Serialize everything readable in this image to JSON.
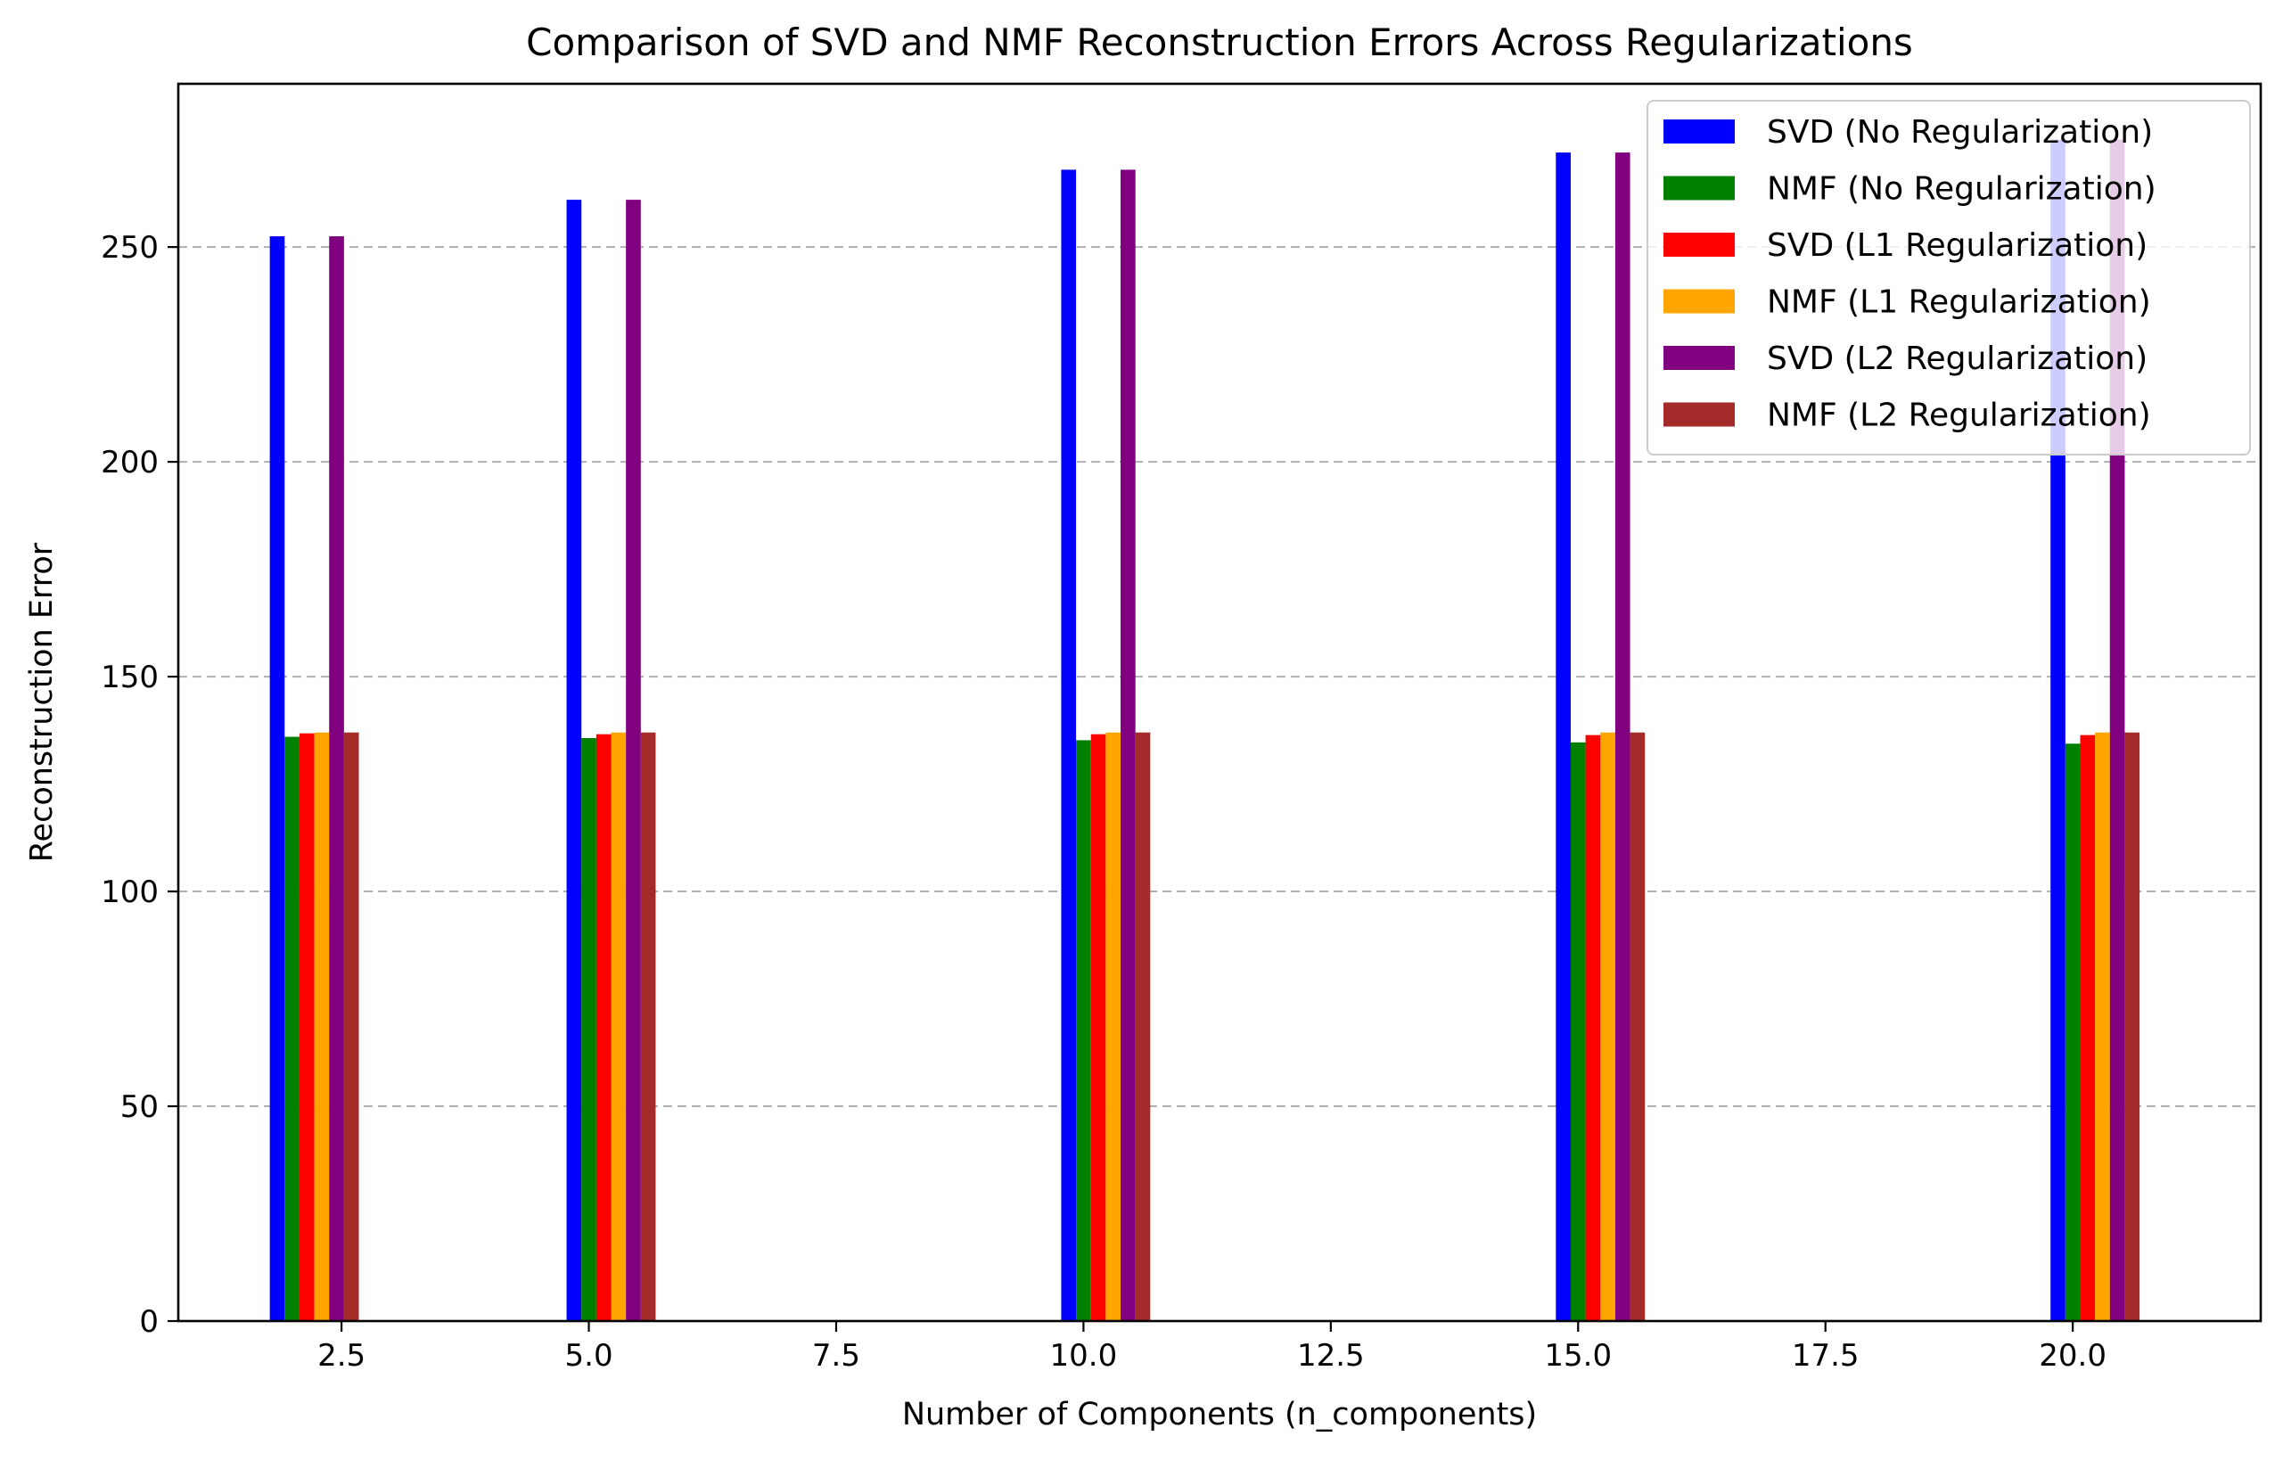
{
  "chart_data": {
    "type": "bar",
    "title": "Comparison of SVD and NMF Reconstruction Errors Across Regularizations",
    "xlabel": "Number of Components (n_components)",
    "ylabel": "Reconstruction Error",
    "x": [
      2,
      5,
      10,
      15,
      20
    ],
    "xlim": [
      0.85,
      21.9
    ],
    "ylim": [
      0,
      288
    ],
    "xticks": [
      2.5,
      5.0,
      7.5,
      10.0,
      12.5,
      15.0,
      17.5,
      20.0
    ],
    "xtick_labels": [
      "2.5",
      "5.0",
      "7.5",
      "10.0",
      "12.5",
      "15.0",
      "17.5",
      "20.0"
    ],
    "yticks": [
      0,
      50,
      100,
      150,
      200,
      250
    ],
    "ytick_labels": [
      "0",
      "50",
      "100",
      "150",
      "200",
      "250"
    ],
    "grid": "y-dashed",
    "legend_position": "top-right",
    "series": [
      {
        "name": "SVD (No Regularization)",
        "color": "#0000ff",
        "values": [
          252.5,
          261.0,
          268.0,
          272.0,
          275.0
        ]
      },
      {
        "name": "NMF (No Regularization)",
        "color": "#008000",
        "values": [
          136.0,
          135.7,
          135.2,
          134.7,
          134.4
        ]
      },
      {
        "name": "SVD (L1 Regularization)",
        "color": "#ff0000",
        "values": [
          136.8,
          136.6,
          136.6,
          136.4,
          136.4
        ]
      },
      {
        "name": "NMF (L1 Regularization)",
        "color": "#ffa500",
        "values": [
          137.0,
          137.0,
          137.0,
          137.0,
          137.0
        ]
      },
      {
        "name": "SVD (L2 Regularization)",
        "color": "#800080",
        "values": [
          252.5,
          261.0,
          268.0,
          272.0,
          275.0
        ]
      },
      {
        "name": "NMF (L2 Regularization)",
        "color": "#a52a2a",
        "values": [
          137.0,
          137.0,
          137.0,
          137.0,
          137.0
        ]
      }
    ]
  }
}
